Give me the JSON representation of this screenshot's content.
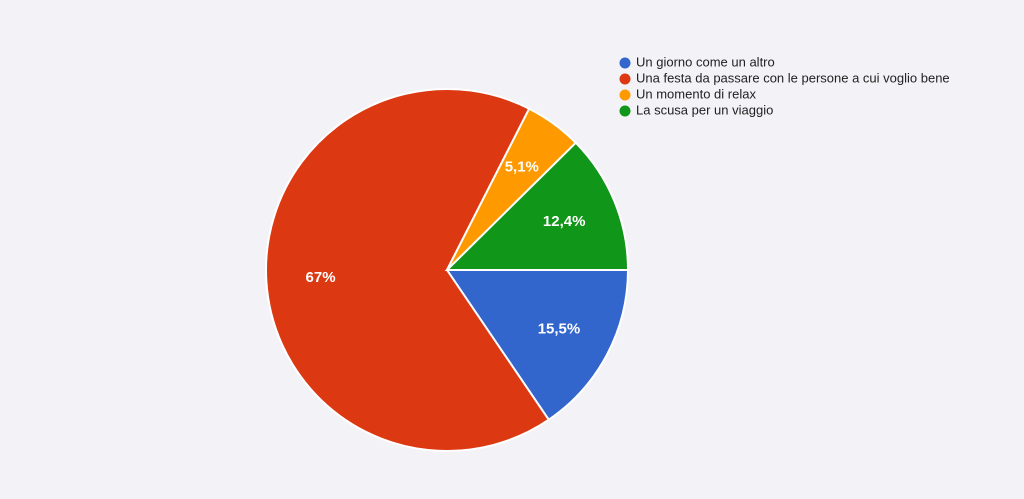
{
  "chart_data": {
    "type": "pie",
    "categories": [
      "Un giorno come un altro",
      "Una festa da passare con le persone a cui voglio bene",
      "Un momento di relax",
      "La scusa per un viaggio"
    ],
    "values": [
      15.5,
      67,
      5.1,
      12.4
    ],
    "value_labels": [
      "15,5%",
      "67%",
      "5,1%",
      "12,4%"
    ],
    "colors": [
      "#3366cc",
      "#dc3912",
      "#ff9900",
      "#109618"
    ],
    "legend": "top-right"
  }
}
